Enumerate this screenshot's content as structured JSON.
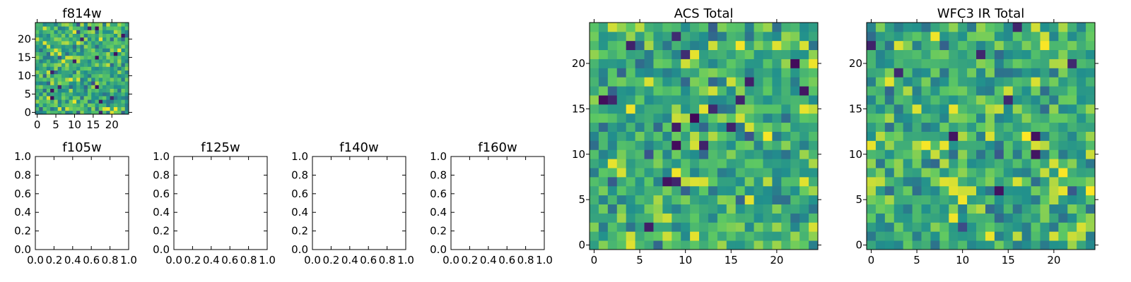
{
  "figure": {
    "background": "#ffffff"
  },
  "colormap": [
    "#440154",
    "#3b528b",
    "#21908d",
    "#5dc863",
    "#fde725"
  ],
  "chart_data": [
    {
      "id": "f814w",
      "type": "heatmap",
      "title": "f814w",
      "grid_size": 25,
      "xlim": [
        -0.5,
        24.5
      ],
      "ylim": [
        -0.5,
        24.5
      ],
      "xticks": [
        "0",
        "5",
        "10",
        "15",
        "20"
      ],
      "yticks": [
        "0",
        "5",
        "10",
        "15",
        "20"
      ],
      "values": [],
      "seed": 814
    },
    {
      "id": "f105w",
      "type": "heatmap",
      "title": "f105w",
      "xlim": [
        0,
        1
      ],
      "ylim": [
        0,
        1
      ],
      "xticks": [
        "0.0",
        "0.2",
        "0.4",
        "0.6",
        "0.8",
        "1.0"
      ],
      "yticks": [
        "0.0",
        "0.2",
        "0.4",
        "0.6",
        "0.8",
        "1.0"
      ],
      "values": []
    },
    {
      "id": "f125w",
      "type": "heatmap",
      "title": "f125w",
      "xlim": [
        0,
        1
      ],
      "ylim": [
        0,
        1
      ],
      "xticks": [
        "0.0",
        "0.2",
        "0.4",
        "0.6",
        "0.8",
        "1.0"
      ],
      "yticks": [
        "0.0",
        "0.2",
        "0.4",
        "0.6",
        "0.8",
        "1.0"
      ],
      "values": []
    },
    {
      "id": "f140w",
      "type": "heatmap",
      "title": "f140w",
      "xlim": [
        0,
        1
      ],
      "ylim": [
        0,
        1
      ],
      "xticks": [
        "0.0",
        "0.2",
        "0.4",
        "0.6",
        "0.8",
        "1.0"
      ],
      "yticks": [
        "0.0",
        "0.2",
        "0.4",
        "0.6",
        "0.8",
        "1.0"
      ],
      "values": []
    },
    {
      "id": "f160w",
      "type": "heatmap",
      "title": "f160w",
      "xlim": [
        0,
        1
      ],
      "ylim": [
        0,
        1
      ],
      "xticks": [
        "0.0",
        "0.2",
        "0.4",
        "0.6",
        "0.8",
        "1.0"
      ],
      "yticks": [
        "0.0",
        "0.2",
        "0.4",
        "0.6",
        "0.8",
        "1.0"
      ],
      "values": []
    },
    {
      "id": "acs-total",
      "type": "heatmap",
      "title": "ACS Total",
      "grid_size": 25,
      "xlim": [
        -0.5,
        24.5
      ],
      "ylim": [
        -0.5,
        24.5
      ],
      "xticks": [
        "0",
        "5",
        "10",
        "15",
        "20"
      ],
      "yticks": [
        "0",
        "5",
        "10",
        "15",
        "20"
      ],
      "values": [],
      "seed": 4242
    },
    {
      "id": "wfc3-ir-total",
      "type": "heatmap",
      "title": "WFC3 IR Total",
      "grid_size": 25,
      "xlim": [
        -0.5,
        24.5
      ],
      "ylim": [
        -0.5,
        24.5
      ],
      "xticks": [
        "0",
        "5",
        "10",
        "15",
        "20"
      ],
      "yticks": [
        "0",
        "5",
        "10",
        "15",
        "20"
      ],
      "values": [],
      "seed": 9393
    }
  ]
}
